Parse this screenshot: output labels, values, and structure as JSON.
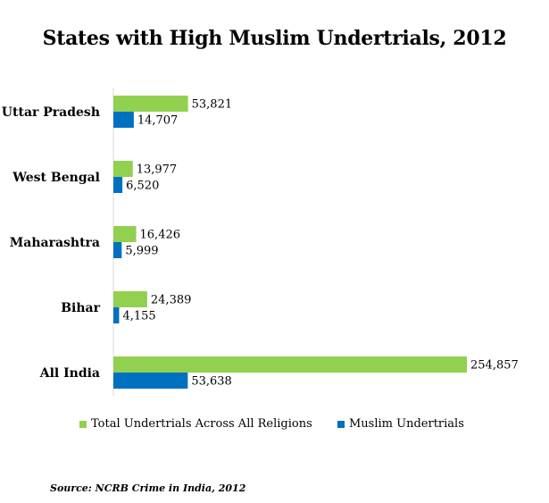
{
  "chart_data": {
    "type": "bar",
    "orientation": "horizontal",
    "title": "States with High Muslim Undertrials, 2012",
    "categories": [
      "Uttar Pradesh",
      "West Bengal",
      "Maharashtra",
      "Bihar",
      "All India"
    ],
    "series": [
      {
        "name": "Total Undertrials Across All Religions",
        "color": "#92d050",
        "values": [
          53821,
          13977,
          16426,
          24389,
          254857
        ],
        "labels": [
          "53,821",
          "13,977",
          "16,426",
          "24,389",
          "254,857"
        ]
      },
      {
        "name": "Muslim Undertrials",
        "color": "#0070c0",
        "values": [
          14707,
          6520,
          5999,
          4155,
          53638
        ],
        "labels": [
          "14,707",
          "6,520",
          "5,999",
          "4,155",
          "53,638"
        ]
      }
    ],
    "xlabel": "",
    "ylabel": "",
    "xlim": [
      0,
      254857
    ],
    "grid": false,
    "legend_position": "bottom",
    "source": "Source: NCRB Crime in India, 2012"
  }
}
